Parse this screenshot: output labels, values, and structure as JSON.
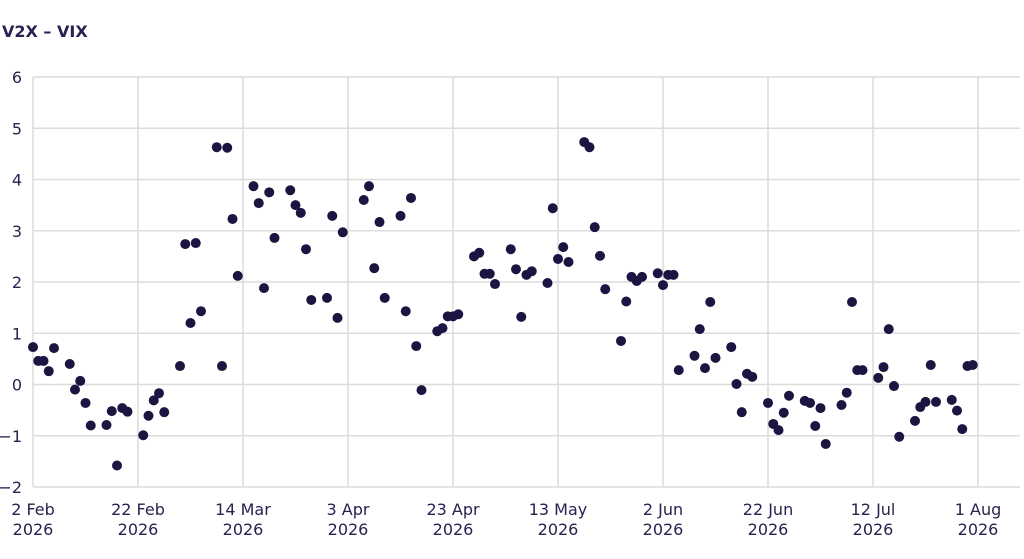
{
  "chart_data": {
    "type": "scatter",
    "title": "V2X – VIX",
    "color": "#1e1442",
    "grid": true,
    "xlim": [
      "2026-02-02",
      "2026-08-09"
    ],
    "xticks": [
      {
        "value": "2026-02-02",
        "label": "2 Feb\n2026"
      },
      {
        "value": "2026-02-22",
        "label": "22 Feb\n2026"
      },
      {
        "value": "2026-03-14",
        "label": "14 Mar\n2026"
      },
      {
        "value": "2026-04-03",
        "label": "3 Apr\n2026"
      },
      {
        "value": "2026-04-23",
        "label": "23 Apr\n2026"
      },
      {
        "value": "2026-05-13",
        "label": "13 May\n2026"
      },
      {
        "value": "2026-06-02",
        "label": "2 Jun\n2026"
      },
      {
        "value": "2026-06-22",
        "label": "22 Jun\n2026"
      },
      {
        "value": "2026-07-12",
        "label": "12 Jul\n2026"
      },
      {
        "value": "2026-08-01",
        "label": "1 Aug\n2026"
      }
    ],
    "ylim": [
      -2,
      6
    ],
    "yticks": [
      {
        "value": -2,
        "label": "−2"
      },
      {
        "value": -1,
        "label": "−1"
      },
      0,
      1,
      2,
      3,
      4,
      5,
      6
    ],
    "x": [
      "2026-02-02",
      "2026-02-03",
      "2026-02-04",
      "2026-02-05",
      "2026-02-06",
      "2026-02-09",
      "2026-02-10",
      "2026-02-11",
      "2026-02-12",
      "2026-02-13",
      "2026-02-16",
      "2026-02-17",
      "2026-02-18",
      "2026-02-19",
      "2026-02-20",
      "2026-02-23",
      "2026-02-24",
      "2026-02-25",
      "2026-02-26",
      "2026-02-27",
      "2026-03-02",
      "2026-03-03",
      "2026-03-04",
      "2026-03-05",
      "2026-03-06",
      "2026-03-09",
      "2026-03-10",
      "2026-03-11",
      "2026-03-12",
      "2026-03-13",
      "2026-03-16",
      "2026-03-17",
      "2026-03-18",
      "2026-03-19",
      "2026-03-20",
      "2026-03-23",
      "2026-03-24",
      "2026-03-25",
      "2026-03-26",
      "2026-03-27",
      "2026-03-30",
      "2026-03-31",
      "2026-04-01",
      "2026-04-02",
      "2026-04-06",
      "2026-04-07",
      "2026-04-08",
      "2026-04-09",
      "2026-04-10",
      "2026-04-13",
      "2026-04-14",
      "2026-04-15",
      "2026-04-16",
      "2026-04-17",
      "2026-04-20",
      "2026-04-21",
      "2026-04-22",
      "2026-04-23",
      "2026-04-24",
      "2026-04-27",
      "2026-04-28",
      "2026-04-29",
      "2026-04-30",
      "2026-05-01",
      "2026-05-04",
      "2026-05-05",
      "2026-05-06",
      "2026-05-07",
      "2026-05-08",
      "2026-05-11",
      "2026-05-12",
      "2026-05-13",
      "2026-05-14",
      "2026-05-15",
      "2026-05-18",
      "2026-05-19",
      "2026-05-20",
      "2026-05-21",
      "2026-05-22",
      "2026-05-25",
      "2026-05-26",
      "2026-05-27",
      "2026-05-28",
      "2026-05-29",
      "2026-06-01",
      "2026-06-02",
      "2026-06-03",
      "2026-06-04",
      "2026-06-05",
      "2026-06-08",
      "2026-06-09",
      "2026-06-10",
      "2026-06-11",
      "2026-06-12",
      "2026-06-15",
      "2026-06-16",
      "2026-06-17",
      "2026-06-18",
      "2026-06-19",
      "2026-06-22",
      "2026-06-23",
      "2026-06-24",
      "2026-06-25",
      "2026-06-26",
      "2026-06-29",
      "2026-06-30",
      "2026-07-01",
      "2026-07-02",
      "2026-07-03",
      "2026-07-06",
      "2026-07-07",
      "2026-07-08",
      "2026-07-09",
      "2026-07-10",
      "2026-07-13",
      "2026-07-14",
      "2026-07-15",
      "2026-07-16",
      "2026-07-17",
      "2026-07-20",
      "2026-07-21",
      "2026-07-22",
      "2026-07-23",
      "2026-07-24",
      "2026-07-27",
      "2026-07-28",
      "2026-07-29",
      "2026-07-30",
      "2026-07-31"
    ],
    "values": [
      0.73,
      0.46,
      0.46,
      0.26,
      0.71,
      0.4,
      -0.1,
      0.07,
      -0.36,
      -0.8,
      -0.79,
      -0.52,
      -1.58,
      -0.46,
      -0.53,
      -0.99,
      -0.61,
      -0.31,
      -0.17,
      -0.54,
      0.36,
      2.74,
      1.2,
      2.76,
      1.43,
      4.63,
      0.36,
      4.62,
      3.23,
      2.12,
      3.87,
      3.54,
      1.88,
      3.75,
      2.86,
      3.79,
      3.5,
      3.35,
      2.64,
      1.65,
      1.69,
      3.29,
      1.3,
      2.97,
      3.6,
      3.87,
      2.27,
      3.17,
      1.69,
      3.29,
      1.43,
      3.64,
      0.75,
      -0.11,
      1.04,
      1.1,
      1.33,
      1.33,
      1.37,
      2.5,
      2.57,
      2.16,
      2.16,
      1.96,
      2.64,
      2.25,
      1.32,
      2.14,
      2.21,
      1.98,
      3.44,
      2.45,
      2.68,
      2.39,
      4.73,
      4.63,
      3.07,
      2.51,
      1.86,
      0.85,
      1.62,
      2.1,
      2.02,
      2.1,
      2.17,
      1.94,
      2.14,
      2.14,
      0.28,
      0.56,
      1.08,
      0.32,
      1.61,
      0.52,
      0.73,
      0.01,
      -0.54,
      0.21,
      0.15,
      -0.36,
      -0.77,
      -0.89,
      -0.55,
      -0.22,
      -0.32,
      -0.36,
      -0.81,
      -0.46,
      -1.16,
      -0.4,
      -0.16,
      1.61,
      0.28,
      0.28,
      0.13,
      0.34,
      1.08,
      -0.03,
      -1.02,
      -0.71,
      -0.44,
      -0.34,
      0.38,
      -0.34,
      -0.3,
      -0.51,
      -0.87,
      0.36,
      0.38
    ]
  }
}
